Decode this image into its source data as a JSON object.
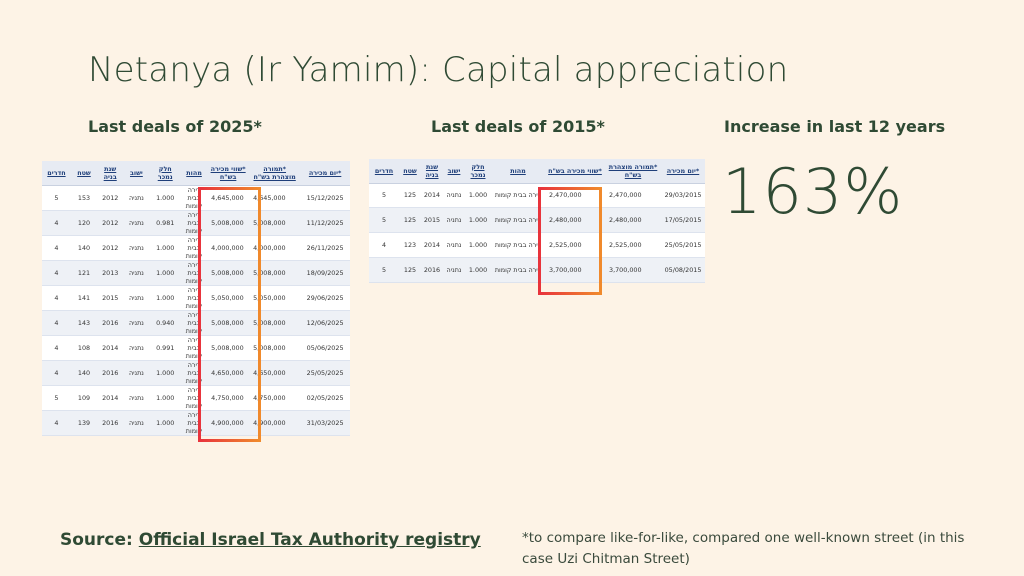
{
  "title": "Netanya (Ir Yamim): Capital appreciation",
  "subtitles": {
    "deals_2025": "Last deals of 2025*",
    "deals_2015": "Last deals of 2015*",
    "increase": "Increase in last 12 years"
  },
  "increase_value": "163%",
  "headers": {
    "rooms": "חדרים",
    "area": "שטח",
    "build_year": "שנת בניה",
    "city": "ישוב",
    "part_sold": "חלק נמכר",
    "type": "מהות",
    "price": "*שווי מכירה בש\"ח",
    "declared": "*תמורה מוצהרת בש\"ח",
    "sale_date": "*יום מכירה"
  },
  "deals_2025": [
    {
      "date": "15/12/2025",
      "declared": "4,645,000",
      "price": "4,645,000",
      "type": "דירה בבית קומות",
      "part": "1.000",
      "city": "נתניה",
      "year": "2012",
      "area": "153",
      "rooms": "5"
    },
    {
      "date": "11/12/2025",
      "declared": "5,008,000",
      "price": "5,008,000",
      "type": "דירה בבית קומות",
      "part": "0.981",
      "city": "נתניה",
      "year": "2012",
      "area": "120",
      "rooms": "4"
    },
    {
      "date": "26/11/2025",
      "declared": "4,000,000",
      "price": "4,000,000",
      "type": "דירה בבית קומות",
      "part": "1.000",
      "city": "נתניה",
      "year": "2012",
      "area": "140",
      "rooms": "4"
    },
    {
      "date": "18/09/2025",
      "declared": "5,008,000",
      "price": "5,008,000",
      "type": "דירה בבית קומות",
      "part": "1.000",
      "city": "נתניה",
      "year": "2013",
      "area": "121",
      "rooms": "4"
    },
    {
      "date": "29/06/2025",
      "declared": "5,050,000",
      "price": "5,050,000",
      "type": "דירה בבית קומות",
      "part": "1.000",
      "city": "נתניה",
      "year": "2015",
      "area": "141",
      "rooms": "4"
    },
    {
      "date": "12/06/2025",
      "declared": "5,008,000",
      "price": "5,008,000",
      "type": "דירה בבית קומות",
      "part": "0.940",
      "city": "נתניה",
      "year": "2016",
      "area": "143",
      "rooms": "4"
    },
    {
      "date": "05/06/2025",
      "declared": "5,008,000",
      "price": "5,008,000",
      "type": "דירה בבית קומות",
      "part": "0.991",
      "city": "נתניה",
      "year": "2014",
      "area": "108",
      "rooms": "4"
    },
    {
      "date": "25/05/2025",
      "declared": "4,650,000",
      "price": "4,650,000",
      "type": "דירה בבית קומות",
      "part": "1.000",
      "city": "נתניה",
      "year": "2016",
      "area": "140",
      "rooms": "4"
    },
    {
      "date": "02/05/2025",
      "declared": "4,750,000",
      "price": "4,750,000",
      "type": "דירה בבית קומות",
      "part": "1.000",
      "city": "נתניה",
      "year": "2014",
      "area": "109",
      "rooms": "5"
    },
    {
      "date": "31/03/2025",
      "declared": "4,900,000",
      "price": "4,900,000",
      "type": "דירה בבית קומות",
      "part": "1.000",
      "city": "נתניה",
      "year": "2016",
      "area": "139",
      "rooms": "4"
    }
  ],
  "deals_2015": [
    {
      "date": "29/03/2015",
      "declared": "2,470,000",
      "price": "2,470,000",
      "type": "דירה בבית קומות",
      "part": "1.000",
      "city": "נתניה",
      "year": "2014",
      "area": "125",
      "rooms": "5"
    },
    {
      "date": "17/05/2015",
      "declared": "2,480,000",
      "price": "2,480,000",
      "type": "דירה בבית קומות",
      "part": "1.000",
      "city": "נתניה",
      "year": "2015",
      "area": "125",
      "rooms": "5"
    },
    {
      "date": "25/05/2015",
      "declared": "2,525,000",
      "price": "2,525,000",
      "type": "דירה בבית קומות",
      "part": "1.000",
      "city": "נתניה",
      "year": "2014",
      "area": "123",
      "rooms": "4"
    },
    {
      "date": "05/08/2015",
      "declared": "3,700,000",
      "price": "3,700,000",
      "type": "דירה בבית קומות",
      "part": "1.000",
      "city": "נתניה",
      "year": "2016",
      "area": "125",
      "rooms": "5"
    }
  ],
  "source": {
    "label": "Source:",
    "link_text": "Official Israel Tax Authority registry"
  },
  "footnote": "*to compare like-for-like, compared one well-known street (in this case Uzi Chitman Street)",
  "colors": {
    "background": "#fdf3e6",
    "text": "#2f4a34",
    "highlight_start": "#e8333c",
    "highlight_end": "#f08a2c"
  }
}
